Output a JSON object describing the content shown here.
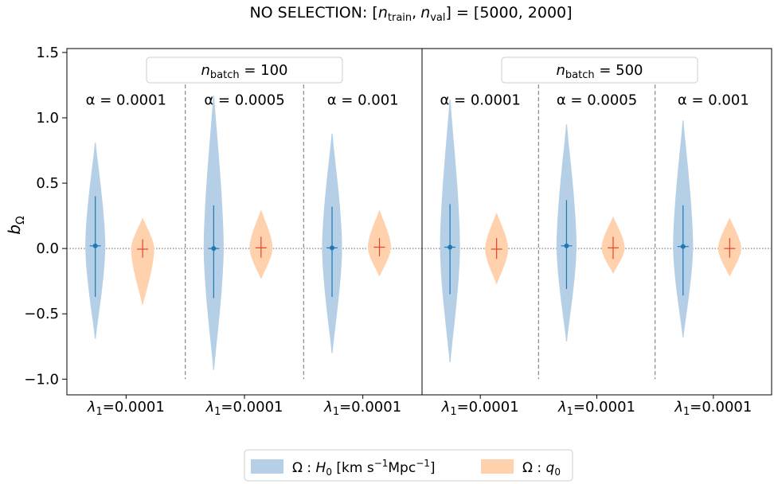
{
  "chart_data": {
    "type": "violin",
    "title": "NO SELECTION: [n_train, n_val] = [5000, 2000]",
    "title_parts": {
      "prefix": "NO SELECTION: [",
      "n": "n",
      "train": "train",
      "sep": ",",
      "val": "val",
      "suffix": "] = [5000, 2000]"
    },
    "ylabel": {
      "main": "b",
      "sub": "Ω"
    },
    "ylim": [
      -1.12,
      1.53
    ],
    "yticks": [
      {
        "v": 1.5,
        "label": "1.5"
      },
      {
        "v": 1.0,
        "label": "1.0"
      },
      {
        "v": 0.5,
        "label": "0.5"
      },
      {
        "v": 0.0,
        "label": "0.0"
      },
      {
        "v": -0.5,
        "label": "−0.5"
      },
      {
        "v": -1.0,
        "label": "−1.0"
      }
    ],
    "xtick_labels": [
      "λ1=0.0001",
      "λ1=0.0001",
      "λ1=0.0001",
      "λ1=0.0001",
      "λ1=0.0001",
      "λ1=0.0001"
    ],
    "xtick_parts": {
      "sym": "λ",
      "sub": "1",
      "val": "=0.0001"
    },
    "colors": {
      "h0": "#1f77b4",
      "q0": "#ff7f0e",
      "h0_fill": "#b5d0e6",
      "q0_fill": "#ffd1ad",
      "ref_line": "#666666",
      "divider": "#888888"
    },
    "panels": [
      {
        "batch_label": {
          "n": "n",
          "sub": "batch",
          "rest": " = 100"
        },
        "groups": [
          {
            "alpha_label": "α = 0.0001",
            "h0": {
              "median": 0.02,
              "lo": -0.37,
              "hi": 0.4,
              "min": -0.69,
              "max": 0.81
            },
            "q0": {
              "median": -0.005,
              "lo": -0.07,
              "hi": 0.07,
              "min": -0.43,
              "max": 0.23
            }
          },
          {
            "alpha_label": "α = 0.0005",
            "h0": {
              "median": 0.0,
              "lo": -0.38,
              "hi": 0.33,
              "min": -0.93,
              "max": 1.17
            },
            "q0": {
              "median": 0.005,
              "lo": -0.07,
              "hi": 0.09,
              "min": -0.23,
              "max": 0.29
            }
          },
          {
            "alpha_label": "α = 0.001",
            "h0": {
              "median": 0.005,
              "lo": -0.37,
              "hi": 0.32,
              "min": -0.8,
              "max": 0.88
            },
            "q0": {
              "median": 0.01,
              "lo": -0.06,
              "hi": 0.08,
              "min": -0.21,
              "max": 0.29
            }
          }
        ]
      },
      {
        "batch_label": {
          "n": "n",
          "sub": "batch",
          "rest": " = 500"
        },
        "groups": [
          {
            "alpha_label": "α = 0.0001",
            "h0": {
              "median": 0.01,
              "lo": -0.35,
              "hi": 0.34,
              "min": -0.87,
              "max": 1.14
            },
            "q0": {
              "median": -0.005,
              "lo": -0.08,
              "hi": 0.08,
              "min": -0.27,
              "max": 0.27
            }
          },
          {
            "alpha_label": "α = 0.0005",
            "h0": {
              "median": 0.02,
              "lo": -0.31,
              "hi": 0.37,
              "min": -0.71,
              "max": 0.95
            },
            "q0": {
              "median": 0.005,
              "lo": -0.08,
              "hi": 0.09,
              "min": -0.19,
              "max": 0.24
            }
          },
          {
            "alpha_label": "α = 0.001",
            "h0": {
              "median": 0.015,
              "lo": -0.36,
              "hi": 0.33,
              "min": -0.68,
              "max": 0.98
            },
            "q0": {
              "median": 0.0,
              "lo": -0.07,
              "hi": 0.08,
              "min": -0.21,
              "max": 0.23
            }
          }
        ]
      }
    ],
    "legend": {
      "placement": "bottom-center",
      "h0": {
        "omega": "Ω",
        "colon": " : ",
        "H": "H",
        "sub0": "0",
        "unit": " [km s",
        "exp1": "−1",
        "mpc": "Mpc",
        "exp2": "−1",
        "close": "]"
      },
      "q0": {
        "omega": "Ω",
        "colon": " : ",
        "q": "q",
        "sub0": "0"
      }
    }
  }
}
